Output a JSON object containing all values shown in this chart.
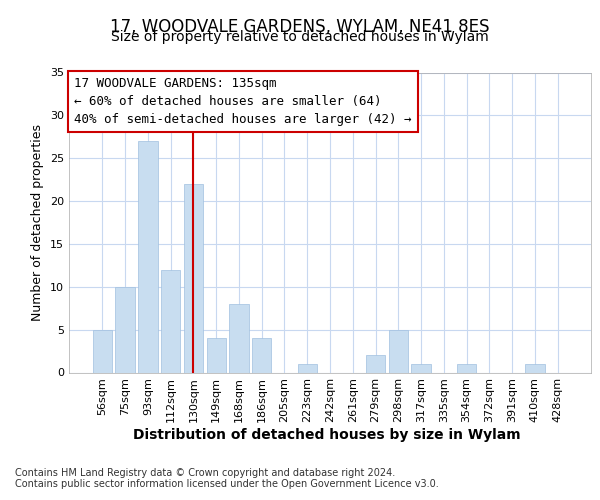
{
  "title": "17, WOODVALE GARDENS, WYLAM, NE41 8ES",
  "subtitle": "Size of property relative to detached houses in Wylam",
  "xlabel": "Distribution of detached houses by size in Wylam",
  "ylabel": "Number of detached properties",
  "categories": [
    "56sqm",
    "75sqm",
    "93sqm",
    "112sqm",
    "130sqm",
    "149sqm",
    "168sqm",
    "186sqm",
    "205sqm",
    "223sqm",
    "242sqm",
    "261sqm",
    "279sqm",
    "298sqm",
    "317sqm",
    "335sqm",
    "354sqm",
    "372sqm",
    "391sqm",
    "410sqm",
    "428sqm"
  ],
  "values": [
    5,
    10,
    27,
    12,
    22,
    4,
    8,
    4,
    0,
    1,
    0,
    0,
    2,
    5,
    1,
    0,
    1,
    0,
    0,
    1,
    0
  ],
  "bar_color": "#c8ddf0",
  "bar_edge_color": "#a0c0df",
  "vline_x_index": 4,
  "vline_color": "#cc0000",
  "annotation_line1": "17 WOODVALE GARDENS: 135sqm",
  "annotation_line2": "← 60% of detached houses are smaller (64)",
  "annotation_line3": "40% of semi-detached houses are larger (42) →",
  "annotation_box_edge": "#cc0000",
  "annotation_box_face": "#ffffff",
  "ylim": [
    0,
    35
  ],
  "yticks": [
    0,
    5,
    10,
    15,
    20,
    25,
    30,
    35
  ],
  "bg_color": "#ffffff",
  "axes_bg_color": "#ffffff",
  "grid_color": "#c8d8f0",
  "title_fontsize": 12,
  "subtitle_fontsize": 10,
  "ylabel_fontsize": 9,
  "xlabel_fontsize": 10,
  "tick_fontsize": 8,
  "annotation_fontsize": 9,
  "footer": "Contains HM Land Registry data © Crown copyright and database right 2024.\nContains public sector information licensed under the Open Government Licence v3.0.",
  "footer_fontsize": 7
}
